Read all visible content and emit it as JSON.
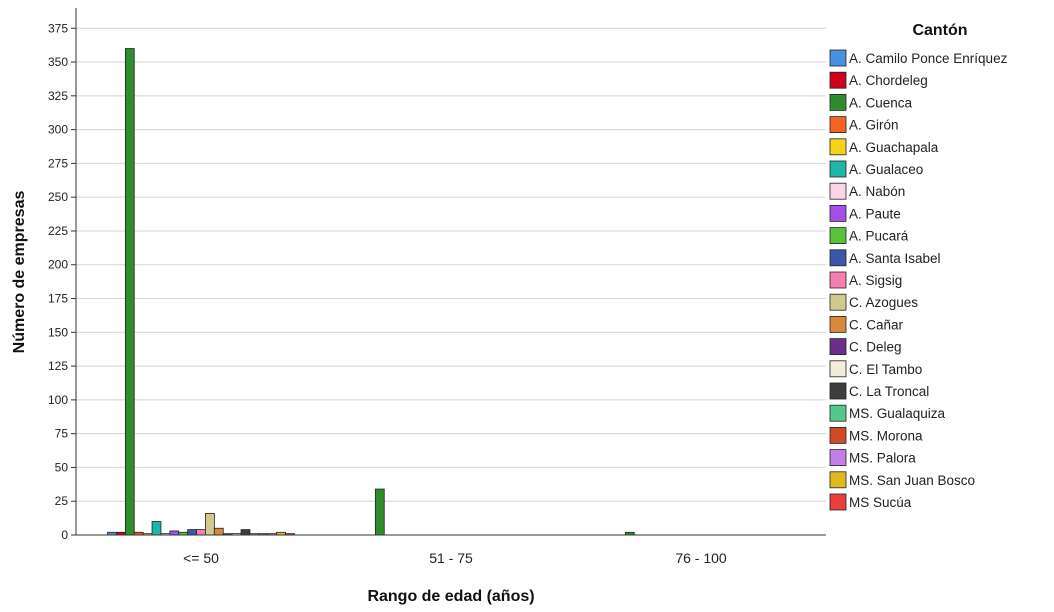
{
  "chart_data": {
    "type": "bar",
    "xlabel": "Rango de edad (años)",
    "ylabel": "Número de empresas",
    "legend_title": "Cantón",
    "legend_position": "right",
    "grid": true,
    "ylim": [
      0,
      390
    ],
    "yticks": [
      0,
      25,
      50,
      75,
      100,
      125,
      150,
      175,
      200,
      225,
      250,
      275,
      300,
      325,
      350,
      375
    ],
    "categories": [
      "<= 50",
      "51 - 75",
      "76 - 100"
    ],
    "series": [
      {
        "name": "A. Camilo Ponce Enríquez",
        "color": "#4a90e2",
        "values": [
          2,
          0,
          0
        ]
      },
      {
        "name": "A. Chordeleg",
        "color": "#d0021b",
        "values": [
          2,
          0,
          0
        ]
      },
      {
        "name": "A. Cuenca",
        "color": "#2e8b2e",
        "values": [
          360,
          34,
          2
        ]
      },
      {
        "name": "A. Girón",
        "color": "#f26522",
        "values": [
          2,
          0,
          0
        ]
      },
      {
        "name": "A. Guachapala",
        "color": "#f2d21b",
        "values": [
          1,
          0,
          0
        ]
      },
      {
        "name": "A. Gualaceo",
        "color": "#1fb5a8",
        "values": [
          10,
          0,
          0
        ]
      },
      {
        "name": "A. Nabón",
        "color": "#fbd3e9",
        "values": [
          1,
          0,
          0
        ]
      },
      {
        "name": "A. Paute",
        "color": "#a64ee8",
        "values": [
          3,
          0,
          0
        ]
      },
      {
        "name": "A. Pucará",
        "color": "#59c23a",
        "values": [
          2,
          0,
          0
        ]
      },
      {
        "name": "A. Santa Isabel",
        "color": "#3b57a8",
        "values": [
          4,
          0,
          0
        ]
      },
      {
        "name": "A. Sigsig",
        "color": "#f47fb0",
        "values": [
          4,
          0,
          0
        ]
      },
      {
        "name": "C. Azogues",
        "color": "#d2c98f",
        "values": [
          16,
          0,
          0
        ]
      },
      {
        "name": "C. Cañar",
        "color": "#d68a3a",
        "values": [
          5,
          0,
          0
        ]
      },
      {
        "name": "C. Deleg",
        "color": "#6b2f8a",
        "values": [
          1,
          0,
          0
        ]
      },
      {
        "name": "C. El Tambo",
        "color": "#f3ecd9",
        "values": [
          1,
          0,
          0
        ]
      },
      {
        "name": "C. La Troncal",
        "color": "#3d3d3d",
        "values": [
          4,
          0,
          0
        ]
      },
      {
        "name": "MS. Gualaquiza",
        "color": "#52c98a",
        "values": [
          1,
          0,
          0
        ]
      },
      {
        "name": "MS. Morona",
        "color": "#d04a2a",
        "values": [
          1,
          0,
          0
        ]
      },
      {
        "name": "MS. Palora",
        "color": "#c47ee8",
        "values": [
          1,
          0,
          0
        ]
      },
      {
        "name": "MS. San Juan Bosco",
        "color": "#e0b822",
        "values": [
          2,
          0,
          0
        ]
      },
      {
        "name": "MS Sucúa",
        "color": "#e84040",
        "values": [
          1,
          0,
          0
        ]
      }
    ]
  }
}
